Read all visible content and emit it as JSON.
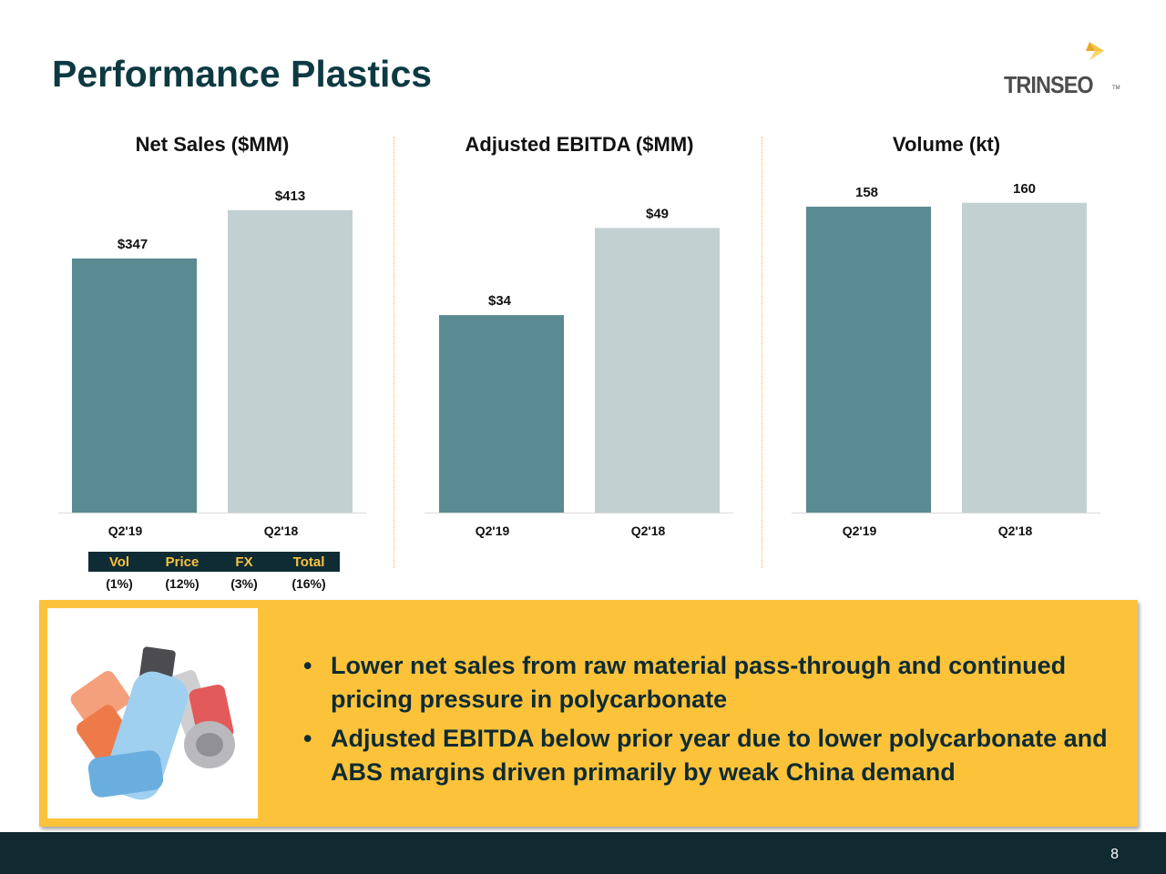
{
  "title": "Performance Plastics",
  "logo": {
    "text": "TRINSEO",
    "tm": "TM"
  },
  "colors": {
    "q2_19": "#5a8a92",
    "q2_18": "#c2d0d2",
    "accent": "#fcc33a",
    "dark": "#112a31"
  },
  "chart_data": [
    {
      "type": "bar",
      "title": "Net Sales ($MM)",
      "categories": [
        "Q2'19",
        "Q2'18"
      ],
      "values": [
        347,
        413
      ],
      "labels": [
        "$347",
        "$413"
      ],
      "ylim": [
        0,
        460
      ]
    },
    {
      "type": "bar",
      "title": "Adjusted EBITDA ($MM)",
      "categories": [
        "Q2'19",
        "Q2'18"
      ],
      "values": [
        34,
        49
      ],
      "labels": [
        "$34",
        "$49"
      ],
      "ylim": [
        0,
        58
      ]
    },
    {
      "type": "bar",
      "title": "Volume (kt)",
      "categories": [
        "Q2'19",
        "Q2'18"
      ],
      "values": [
        158,
        160
      ],
      "labels": [
        "158",
        "160"
      ],
      "ylim": [
        0,
        174
      ]
    }
  ],
  "bridge": {
    "headers": [
      "Vol",
      "Price",
      "FX",
      "Total"
    ],
    "values": [
      "(1%)",
      "(12%)",
      "(3%)",
      "(16%)"
    ]
  },
  "callout": {
    "image": "inhaler-image",
    "bullets": [
      "Lower net sales from raw material pass-through and continued pricing pressure in polycarbonate",
      "Adjusted EBITDA below prior year due to lower polycarbonate and ABS margins driven primarily by weak China demand"
    ]
  },
  "footer": {
    "page_number": "8"
  }
}
